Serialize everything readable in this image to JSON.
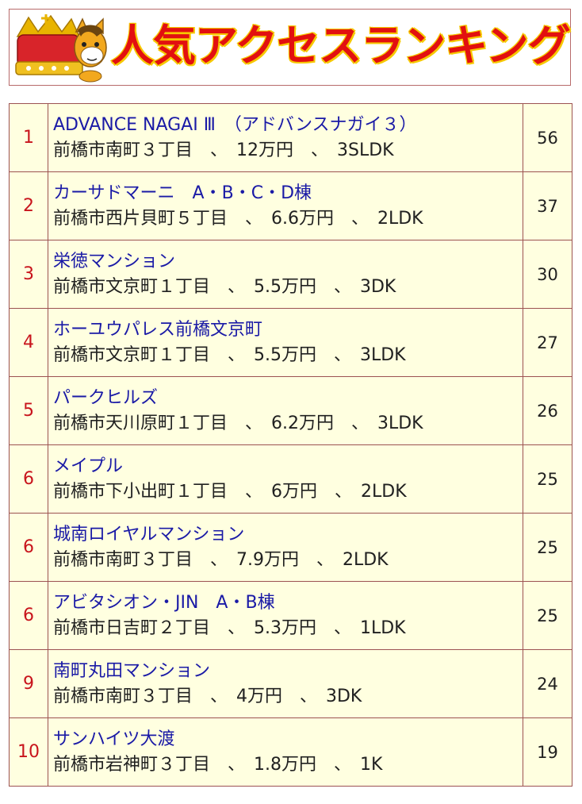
{
  "header": {
    "title": "人気アクセスランキング",
    "mascot_icon": "mascot-with-crown-icon"
  },
  "colors": {
    "title_red": "#e21010",
    "title_outline": "#f6c800",
    "rank_red": "#c8141c",
    "name_blue": "#1a1aa6",
    "cell_bg": "#ffffe0",
    "border": "#9c5252"
  },
  "ranking": [
    {
      "rank": "1",
      "name": "ADVANCE NAGAI Ⅲ　（アドバンスナガイ３）",
      "detail": "前橋市南町３丁目　、　12万円　、　3SLDK",
      "count": "56"
    },
    {
      "rank": "2",
      "name": "カーサドマーニ　A・B・C・D棟",
      "detail": "前橋市西片貝町５丁目　、　6.6万円　、　2LDK",
      "count": "37"
    },
    {
      "rank": "3",
      "name": "栄徳マンション",
      "detail": "前橋市文京町１丁目　、　5.5万円　、　3DK",
      "count": "30"
    },
    {
      "rank": "4",
      "name": "ホーユウパレス前橋文京町",
      "detail": "前橋市文京町１丁目　、　5.5万円　、　3LDK",
      "count": "27"
    },
    {
      "rank": "5",
      "name": "パークヒルズ",
      "detail": "前橋市天川原町１丁目　、　6.2万円　、　3LDK",
      "count": "26"
    },
    {
      "rank": "6",
      "name": "メイプル",
      "detail": "前橋市下小出町１丁目　、　6万円　、　2LDK",
      "count": "25"
    },
    {
      "rank": "6",
      "name": "城南ロイヤルマンション",
      "detail": "前橋市南町３丁目　、　7.9万円　、　2LDK",
      "count": "25"
    },
    {
      "rank": "6",
      "name": "アビタシオン・JIN　A・B棟",
      "detail": "前橋市日吉町２丁目　、　5.3万円　、　1LDK",
      "count": "25"
    },
    {
      "rank": "9",
      "name": "南町丸田マンション",
      "detail": "前橋市南町３丁目　、　4万円　、　3DK",
      "count": "24"
    },
    {
      "rank": "10",
      "name": "サンハイツ大渡",
      "detail": "前橋市岩神町３丁目　、　1.8万円　、　1K",
      "count": "19"
    }
  ]
}
